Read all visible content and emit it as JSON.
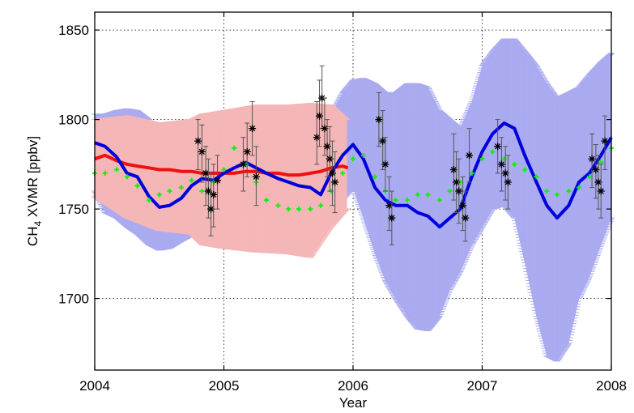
{
  "chart_data": {
    "type": "scatter",
    "title": "",
    "xlabel": "Year",
    "ylabel_main": "CH",
    "ylabel_sub": "4",
    "ylabel_rest": " XVMR [ppbv]",
    "xlim": [
      2004,
      2008
    ],
    "ylim": [
      1660,
      1860
    ],
    "xticks": [
      2004,
      2005,
      2006,
      2007,
      2008
    ],
    "yticks": [
      1700,
      1750,
      1800,
      1850
    ],
    "grid": true,
    "legend": "none",
    "series": [
      {
        "style": "errorbar-band",
        "color": "#aaaaf0",
        "points": [
          [
            2004.0,
            1787,
            1760,
            1803
          ],
          [
            2004.08,
            1785,
            1748,
            1803
          ],
          [
            2004.17,
            1779,
            1745,
            1805
          ],
          [
            2004.25,
            1770,
            1740,
            1806
          ],
          [
            2004.33,
            1768,
            1736,
            1805
          ],
          [
            2004.42,
            1757,
            1730,
            1800
          ],
          [
            2004.5,
            1751,
            1727,
            1790
          ],
          [
            2004.58,
            1752,
            1728,
            1785
          ],
          [
            2004.67,
            1756,
            1732,
            1788
          ],
          [
            2004.75,
            1763,
            1735,
            1790
          ],
          [
            2004.83,
            1767,
            1738,
            1792
          ],
          [
            2004.92,
            1766,
            1740,
            1794
          ],
          [
            2005.0,
            1770,
            1745,
            1798
          ],
          [
            2005.08,
            1773,
            1748,
            1800
          ],
          [
            2005.17,
            1776,
            1750,
            1801
          ],
          [
            2005.25,
            1773,
            1750,
            1800
          ],
          [
            2005.33,
            1770,
            1748,
            1797
          ],
          [
            2005.42,
            1767,
            1745,
            1795
          ],
          [
            2005.5,
            1765,
            1742,
            1795
          ],
          [
            2005.58,
            1763,
            1740,
            1795
          ],
          [
            2005.67,
            1762,
            1740,
            1795
          ],
          [
            2005.75,
            1758,
            1738,
            1797
          ],
          [
            2005.83,
            1770,
            1745,
            1803
          ],
          [
            2005.92,
            1780,
            1755,
            1815
          ],
          [
            2006.0,
            1786,
            1762,
            1822
          ],
          [
            2006.08,
            1778,
            1745,
            1823
          ],
          [
            2006.17,
            1762,
            1725,
            1820
          ],
          [
            2006.25,
            1755,
            1710,
            1815
          ],
          [
            2006.33,
            1752,
            1700,
            1815
          ],
          [
            2006.42,
            1752,
            1690,
            1820
          ],
          [
            2006.5,
            1748,
            1683,
            1820
          ],
          [
            2006.58,
            1746,
            1682,
            1818
          ],
          [
            2006.67,
            1740,
            1690,
            1805
          ],
          [
            2006.75,
            1745,
            1705,
            1800
          ],
          [
            2006.83,
            1750,
            1715,
            1795
          ],
          [
            2006.92,
            1768,
            1730,
            1810
          ],
          [
            2007.0,
            1782,
            1740,
            1830
          ],
          [
            2007.08,
            1792,
            1750,
            1838
          ],
          [
            2007.17,
            1798,
            1752,
            1845
          ],
          [
            2007.25,
            1795,
            1745,
            1845
          ],
          [
            2007.33,
            1780,
            1720,
            1838
          ],
          [
            2007.42,
            1765,
            1690,
            1830
          ],
          [
            2007.5,
            1752,
            1668,
            1820
          ],
          [
            2007.58,
            1745,
            1665,
            1812
          ],
          [
            2007.67,
            1752,
            1675,
            1815
          ],
          [
            2007.75,
            1765,
            1700,
            1818
          ],
          [
            2007.83,
            1770,
            1712,
            1825
          ],
          [
            2007.92,
            1780,
            1730,
            1832
          ],
          [
            2008.0,
            1790,
            1745,
            1837
          ]
        ]
      },
      {
        "style": "errorbar-band",
        "color": "#f4b6b6",
        "points": [
          [
            2004.0,
            1778,
            1757,
            1800
          ],
          [
            2004.25,
            1776,
            1745,
            1802
          ],
          [
            2004.5,
            1773,
            1738,
            1798
          ],
          [
            2004.75,
            1772,
            1736,
            1800
          ],
          [
            2004.83,
            1770,
            1730,
            1803
          ],
          [
            2005.0,
            1770,
            1728,
            1805
          ],
          [
            2005.25,
            1770,
            1726,
            1808
          ],
          [
            2005.5,
            1770,
            1725,
            1808
          ],
          [
            2005.67,
            1770,
            1723,
            1809
          ],
          [
            2005.83,
            1772,
            1740,
            1808
          ],
          [
            2005.95,
            1773,
            1750,
            1800
          ]
        ]
      },
      {
        "style": "line",
        "color": "#ee1111",
        "x": [
          2004.0,
          2004.08,
          2004.17,
          2004.25,
          2004.33,
          2004.42,
          2004.5,
          2004.58,
          2004.67,
          2004.75,
          2004.83,
          2004.92,
          2005.0,
          2005.08,
          2005.17,
          2005.25,
          2005.33,
          2005.42,
          2005.5,
          2005.58,
          2005.67,
          2005.75,
          2005.83,
          2005.92,
          2005.96
        ],
        "y": [
          1778,
          1780,
          1777,
          1775,
          1774,
          1773,
          1772,
          1772,
          1771,
          1771,
          1770,
          1770,
          1770,
          1770,
          1771,
          1771,
          1770,
          1770,
          1769,
          1769,
          1770,
          1771,
          1773,
          1774,
          1773
        ]
      },
      {
        "style": "line",
        "color": "#0000dd",
        "x": [
          2004.0,
          2004.08,
          2004.17,
          2004.25,
          2004.33,
          2004.42,
          2004.5,
          2004.58,
          2004.67,
          2004.75,
          2004.83,
          2004.92,
          2005.0,
          2005.08,
          2005.17,
          2005.25,
          2005.33,
          2005.42,
          2005.5,
          2005.58,
          2005.67,
          2005.75,
          2005.83,
          2005.92,
          2006.0,
          2006.08,
          2006.17,
          2006.25,
          2006.33,
          2006.42,
          2006.5,
          2006.58,
          2006.67,
          2006.75,
          2006.83,
          2006.92,
          2007.0,
          2007.08,
          2007.17,
          2007.25,
          2007.33,
          2007.42,
          2007.5,
          2007.58,
          2007.67,
          2007.75,
          2007.83,
          2007.92,
          2008.0
        ],
        "y": [
          1787,
          1785,
          1779,
          1770,
          1768,
          1757,
          1751,
          1752,
          1756,
          1763,
          1767,
          1766,
          1770,
          1773,
          1776,
          1773,
          1770,
          1767,
          1765,
          1763,
          1762,
          1758,
          1770,
          1780,
          1786,
          1778,
          1762,
          1755,
          1752,
          1752,
          1748,
          1746,
          1740,
          1745,
          1750,
          1768,
          1782,
          1792,
          1798,
          1795,
          1780,
          1765,
          1752,
          1745,
          1752,
          1765,
          1770,
          1780,
          1790
        ]
      },
      {
        "style": "markers",
        "color": "#11ee11",
        "x": [
          2004.0,
          2004.08,
          2004.17,
          2004.25,
          2004.33,
          2004.42,
          2004.5,
          2004.58,
          2004.67,
          2004.75,
          2004.83,
          2004.92,
          2005.0,
          2005.08,
          2005.17,
          2005.25,
          2005.33,
          2005.42,
          2005.5,
          2005.58,
          2005.67,
          2005.75,
          2005.83,
          2005.92,
          2006.0,
          2006.08,
          2006.17,
          2006.25,
          2006.33,
          2006.42,
          2006.5,
          2006.58,
          2006.67,
          2006.75,
          2006.83,
          2006.92,
          2007.0,
          2007.08,
          2007.17,
          2007.25,
          2007.33,
          2007.42,
          2007.5,
          2007.58,
          2007.67,
          2007.75,
          2007.83,
          2007.92,
          2008.0
        ],
        "y": [
          1770,
          1770,
          1772,
          1768,
          1763,
          1755,
          1758,
          1760,
          1762,
          1766,
          1760,
          1765,
          1772,
          1784,
          1775,
          1765,
          1755,
          1752,
          1750,
          1750,
          1750,
          1752,
          1760,
          1770,
          1778,
          1780,
          1768,
          1760,
          1755,
          1755,
          1758,
          1758,
          1755,
          1760,
          1765,
          1770,
          1778,
          1782,
          1778,
          1775,
          1772,
          1768,
          1760,
          1758,
          1760,
          1762,
          1768,
          1776,
          1784
        ]
      },
      {
        "style": "markers-star",
        "color": "#000000",
        "points": [
          [
            2004.8,
            1788,
            1772,
            1800
          ],
          [
            2004.83,
            1782,
            1765,
            1797
          ],
          [
            2004.86,
            1770,
            1752,
            1785
          ],
          [
            2004.88,
            1760,
            1745,
            1778
          ],
          [
            2004.9,
            1750,
            1735,
            1770
          ],
          [
            2004.92,
            1758,
            1740,
            1775
          ],
          [
            2004.95,
            1766,
            1750,
            1780
          ],
          [
            2005.15,
            1775,
            1760,
            1790
          ],
          [
            2005.18,
            1782,
            1768,
            1798
          ],
          [
            2005.22,
            1795,
            1780,
            1810
          ],
          [
            2005.25,
            1768,
            1752,
            1785
          ],
          [
            2005.72,
            1790,
            1775,
            1810
          ],
          [
            2005.74,
            1802,
            1785,
            1822
          ],
          [
            2005.76,
            1812,
            1795,
            1830
          ],
          [
            2005.78,
            1795,
            1780,
            1812
          ],
          [
            2005.8,
            1785,
            1768,
            1800
          ],
          [
            2005.82,
            1778,
            1760,
            1796
          ],
          [
            2005.84,
            1770,
            1752,
            1788
          ],
          [
            2005.86,
            1765,
            1748,
            1782
          ],
          [
            2006.2,
            1800,
            1785,
            1815
          ],
          [
            2006.23,
            1788,
            1772,
            1805
          ],
          [
            2006.25,
            1775,
            1760,
            1790
          ],
          [
            2006.28,
            1752,
            1738,
            1768
          ],
          [
            2006.3,
            1745,
            1730,
            1760
          ],
          [
            2006.78,
            1772,
            1755,
            1792
          ],
          [
            2006.8,
            1765,
            1748,
            1782
          ],
          [
            2006.82,
            1760,
            1742,
            1778
          ],
          [
            2006.85,
            1752,
            1738,
            1768
          ],
          [
            2006.87,
            1745,
            1732,
            1760
          ],
          [
            2006.9,
            1780,
            1765,
            1795
          ],
          [
            2007.12,
            1785,
            1770,
            1800
          ],
          [
            2007.15,
            1775,
            1760,
            1790
          ],
          [
            2007.18,
            1770,
            1755,
            1785
          ],
          [
            2007.2,
            1765,
            1750,
            1780
          ],
          [
            2007.85,
            1778,
            1762,
            1792
          ],
          [
            2007.88,
            1772,
            1756,
            1786
          ],
          [
            2007.9,
            1765,
            1750,
            1780
          ],
          [
            2007.92,
            1760,
            1745,
            1775
          ],
          [
            2007.95,
            1788,
            1772,
            1802
          ]
        ]
      }
    ]
  }
}
